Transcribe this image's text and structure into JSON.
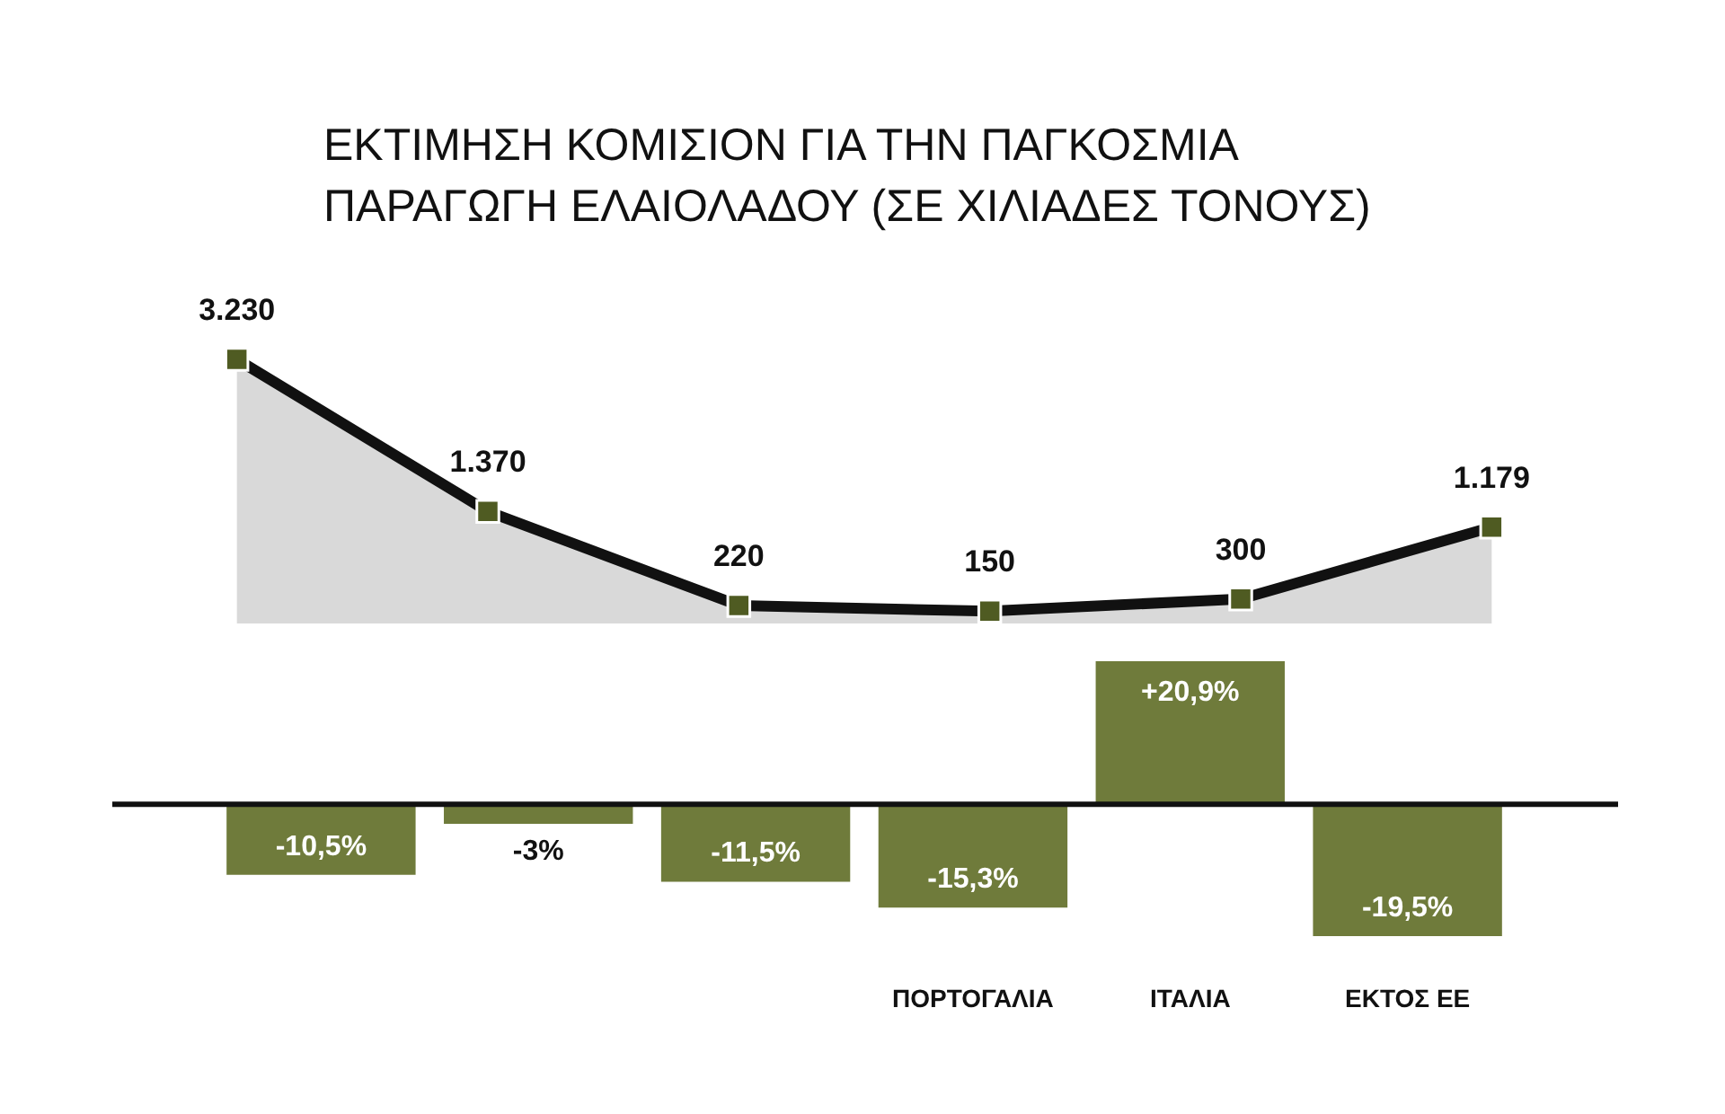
{
  "chart_data": [
    {
      "type": "area",
      "title": "ΕΚΤΙΜΗΣΗ ΚΟΜΙΣΙΟΝ ΓΙΑ ΤΗΝ ΠΑΓΚΟΣΜΙΑ ΠΑΡΑΓΩΓΗ ΕΛΑΙΟΛΑΔΟΥ (ΣΕ ΧΙΛΙΑΔΕΣ ΤΟΝΟΥΣ)",
      "categories": [
        null,
        null,
        null,
        null,
        null,
        null
      ],
      "series": [
        {
          "color": "#111111",
          "marker": "square",
          "colors": [
            "#4f5b22",
            "#4f5b22",
            "#4f5b22",
            "#4f5b22",
            "#4f5b22",
            "#4f5b22"
          ],
          "values": [
            3230,
            1370,
            220,
            150,
            300,
            1179
          ],
          "value_labels": [
            "3.230",
            "1.370",
            "220",
            "150",
            "300",
            "1.179"
          ]
        }
      ],
      "tick_labels": false
    },
    {
      "type": "bar",
      "categories": [
        null,
        null,
        null,
        "ΠΟΡΤΟΓΑΛΙΑ",
        "ΙΤΑΛΙΑ",
        "ΕΚΤΟΣ ΕΕ"
      ],
      "series": [
        {
          "color": "#6f7b3b",
          "values": [
            -10.5,
            -3,
            -11.5,
            -15.3,
            20.9,
            -19.5
          ],
          "value_labels": [
            "-10,5%",
            "-3%",
            "-11,5%",
            "-15,3%",
            "+20,9%",
            "-19,5%"
          ]
        }
      ],
      "tick_labels": "x"
    }
  ]
}
